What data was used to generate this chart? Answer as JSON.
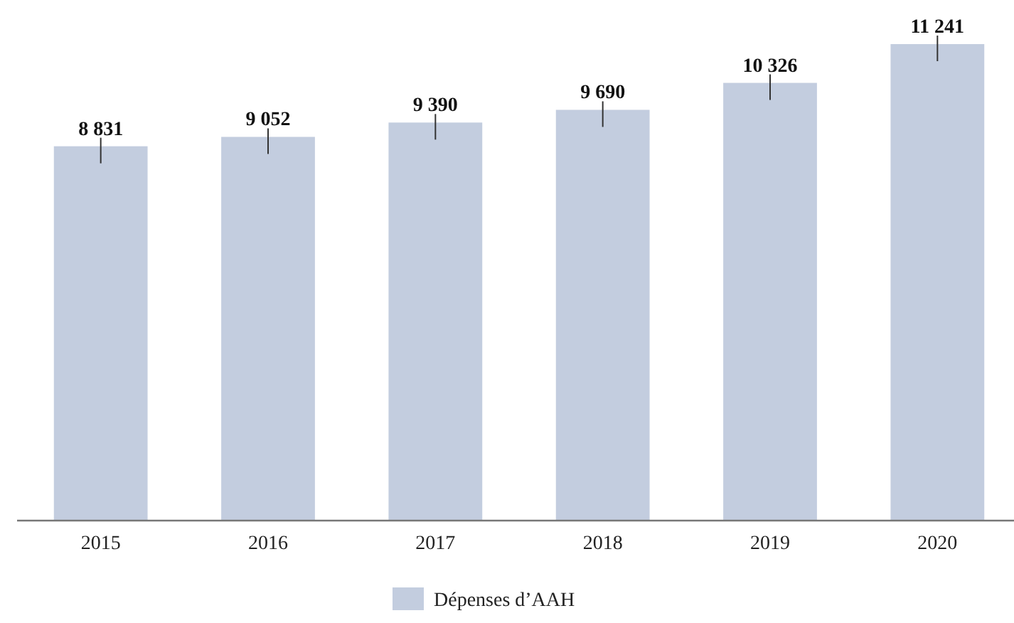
{
  "chart_data": {
    "type": "bar",
    "categories": [
      "2015",
      "2016",
      "2017",
      "2018",
      "2019",
      "2020"
    ],
    "series": [
      {
        "name": "Dépenses d’AAH",
        "color": "#c3cddf",
        "values": [
          8831,
          9052,
          9390,
          9690,
          10326,
          11241
        ],
        "value_labels": [
          "8 831",
          "9 052",
          "9 390",
          "9 690",
          "10 326",
          "11 241"
        ]
      }
    ],
    "legend": "bottom"
  }
}
